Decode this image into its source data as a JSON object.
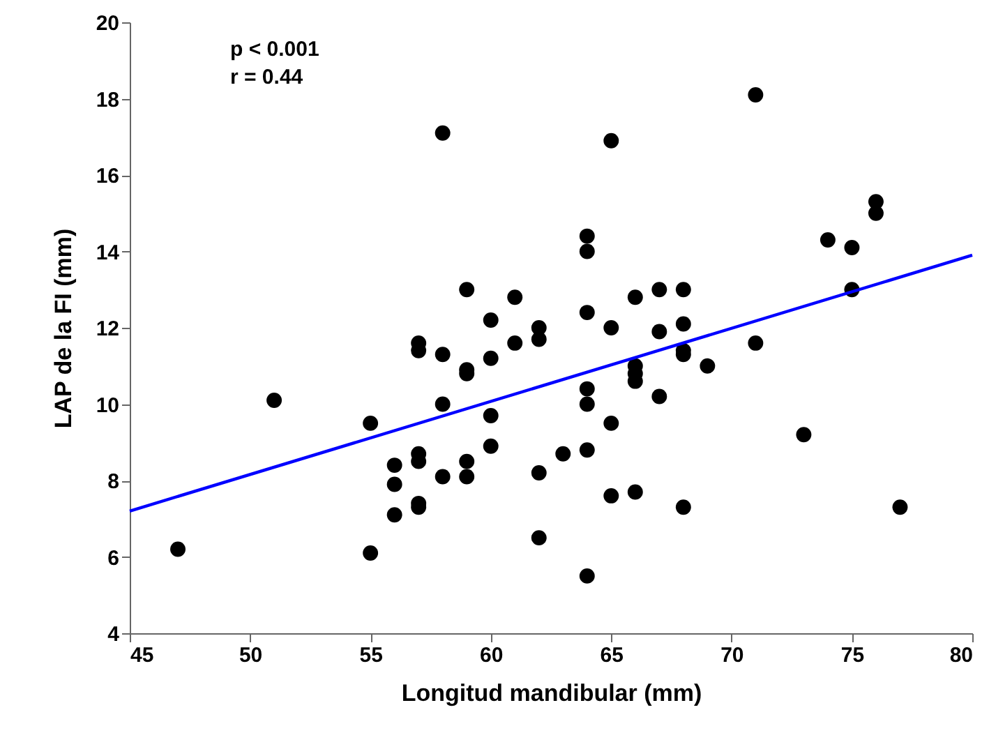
{
  "chart_data": {
    "type": "scatter",
    "xlabel": "Longitud mandibular (mm)",
    "ylabel": "LAP de la FI (mm)",
    "annotations": [
      "p < 0.001",
      "r = 0.44"
    ],
    "xlim": [
      45,
      80
    ],
    "xticks": [
      45,
      50,
      55,
      60,
      65,
      70,
      75,
      80
    ],
    "ylim": [
      4,
      20
    ],
    "yticks": [
      4,
      6,
      8,
      10,
      12,
      14,
      16,
      18,
      20
    ],
    "grid": false,
    "series": [
      {
        "color": "#000000",
        "marker": "circle",
        "x": [
          47,
          51,
          55,
          55,
          56,
          56,
          56,
          57,
          57,
          57,
          57,
          57,
          57,
          58,
          58,
          58,
          58,
          59,
          59,
          59,
          59,
          59,
          60,
          60,
          60,
          60,
          61,
          61,
          62,
          62,
          62,
          62,
          63,
          64,
          64,
          64,
          64,
          64,
          64,
          64,
          65,
          65,
          65,
          65,
          66,
          66,
          66,
          66,
          66,
          67,
          67,
          67,
          68,
          68,
          68,
          68,
          68,
          69,
          71,
          71,
          73,
          74,
          75,
          75,
          76,
          76,
          77
        ],
        "values": [
          6.2,
          10.1,
          9.5,
          6.1,
          8.4,
          7.9,
          7.1,
          11.6,
          11.4,
          8.7,
          8.5,
          7.4,
          7.3,
          17.1,
          11.3,
          10.0,
          8.1,
          13.0,
          10.9,
          10.8,
          8.5,
          8.1,
          12.2,
          11.2,
          9.7,
          8.9,
          12.8,
          11.6,
          12.0,
          11.7,
          8.2,
          6.5,
          8.7,
          14.4,
          14.0,
          12.4,
          10.4,
          10.0,
          8.8,
          5.5,
          16.9,
          12.0,
          9.5,
          7.6,
          12.8,
          11.0,
          10.8,
          10.6,
          7.7,
          13.0,
          11.9,
          10.2,
          13.0,
          12.1,
          11.4,
          11.3,
          7.3,
          11.0,
          18.1,
          11.6,
          9.2,
          14.3,
          14.1,
          13.0,
          15.3,
          15.0,
          7.3
        ]
      },
      {
        "type": "line",
        "color": "#0000ff",
        "line_style": "solid",
        "x": [
          45,
          80
        ],
        "values": [
          7.2,
          13.9
        ]
      }
    ]
  }
}
